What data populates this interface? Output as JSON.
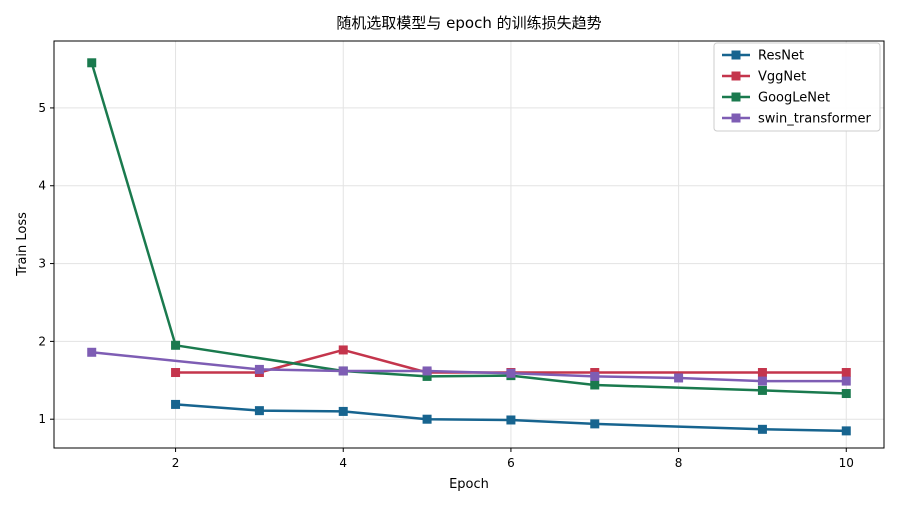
{
  "chart_data": {
    "type": "line",
    "title": "随机选取模型与 epoch 的训练损失趋势",
    "xlabel": "Epoch",
    "ylabel": "Train Loss",
    "xlim": [
      0.55,
      10.45
    ],
    "ylim": [
      0.63,
      5.86
    ],
    "xticks": [
      2,
      4,
      6,
      8,
      10
    ],
    "yticks": [
      1,
      2,
      3,
      4,
      5
    ],
    "grid": true,
    "legend_position": "top-right",
    "series": [
      {
        "name": "ResNet",
        "color": "#17648f",
        "x": [
          2,
          3,
          4,
          5,
          6,
          7,
          9,
          10
        ],
        "values": [
          1.19,
          1.11,
          1.1,
          1.0,
          0.99,
          0.94,
          0.87,
          0.85
        ]
      },
      {
        "name": "VggNet",
        "color": "#c4354c",
        "x": [
          2,
          3,
          4,
          5,
          6,
          7,
          9,
          10
        ],
        "values": [
          1.6,
          1.6,
          1.89,
          1.6,
          1.6,
          1.6,
          1.6,
          1.6
        ]
      },
      {
        "name": "GoogLeNet",
        "color": "#1a7a4e",
        "x": [
          1,
          2,
          4,
          5,
          6,
          7,
          9,
          10
        ],
        "values": [
          5.58,
          1.95,
          1.62,
          1.55,
          1.56,
          1.44,
          1.37,
          1.33
        ]
      },
      {
        "name": "swin_transformer",
        "color": "#7e5db4",
        "x": [
          1,
          3,
          4,
          5,
          6,
          7,
          8,
          9,
          10
        ],
        "values": [
          1.86,
          1.64,
          1.62,
          1.62,
          1.59,
          1.55,
          1.53,
          1.49,
          1.49
        ]
      }
    ]
  }
}
